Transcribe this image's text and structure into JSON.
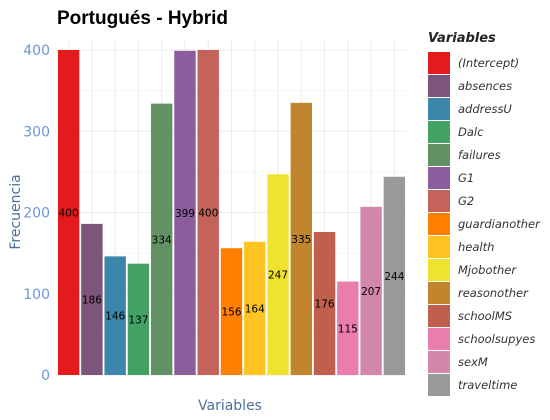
{
  "chart_data": {
    "type": "bar",
    "title": "Portugués - Hybrid",
    "xlabel": "Variables",
    "ylabel": "Frecuencia",
    "ylim": [
      0,
      420
    ],
    "yticks": [
      0,
      100,
      200,
      300,
      400
    ],
    "grid": true,
    "legend": {
      "title": "Variables",
      "placement": "right"
    },
    "categories": [
      "(Intercept)",
      "absences",
      "addressU",
      "Dalc",
      "failures",
      "G1",
      "G2",
      "guardianother",
      "health",
      "Mjobother",
      "reasonother",
      "schoolMS",
      "schoolsupyes",
      "sexM",
      "traveltime"
    ],
    "values": [
      400,
      186,
      146,
      137,
      334,
      399,
      400,
      156,
      164,
      247,
      335,
      176,
      115,
      207,
      244
    ],
    "colors": [
      "#e41a1c",
      "#7e557a",
      "#3b86aa",
      "#42a264",
      "#629264",
      "#8c5d9d",
      "#c4635a",
      "#ff7f00",
      "#fdc424",
      "#f0e32f",
      "#c1852e",
      "#c15f4f",
      "#ea7dac",
      "#d387ab",
      "#999999"
    ]
  }
}
